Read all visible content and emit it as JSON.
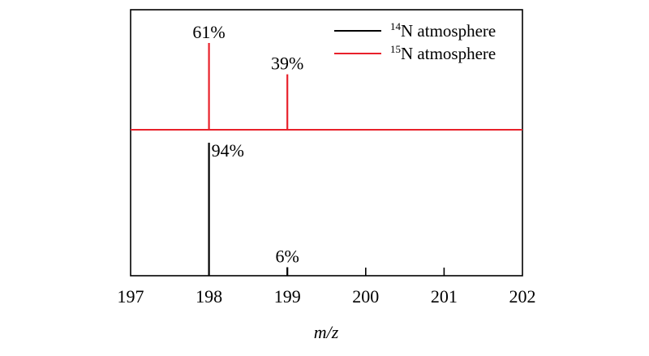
{
  "chart_data": {
    "type": "bar",
    "subtype": "stacked mass spectra (stick plot)",
    "xlabel": "m/z",
    "xlim": [
      197,
      202
    ],
    "x_ticks": [
      "197",
      "198",
      "199",
      "200",
      "201",
      "202"
    ],
    "y_axis_visible": false,
    "grid": false,
    "legend_position": "top-right",
    "series": [
      {
        "name": "14N atmosphere",
        "legend_sup": "14",
        "legend_text": "N atmosphere",
        "color": "#000000",
        "panel": "lower",
        "x": [
          198,
          199
        ],
        "values": [
          94,
          6
        ],
        "labels": [
          "94%",
          "6%"
        ]
      },
      {
        "name": "15N atmosphere",
        "legend_sup": "15",
        "legend_text": "N atmosphere",
        "color": "#e8212b",
        "panel": "upper",
        "x": [
          198,
          199
        ],
        "values": [
          61,
          39
        ],
        "labels": [
          "61%",
          "39%"
        ]
      }
    ]
  }
}
